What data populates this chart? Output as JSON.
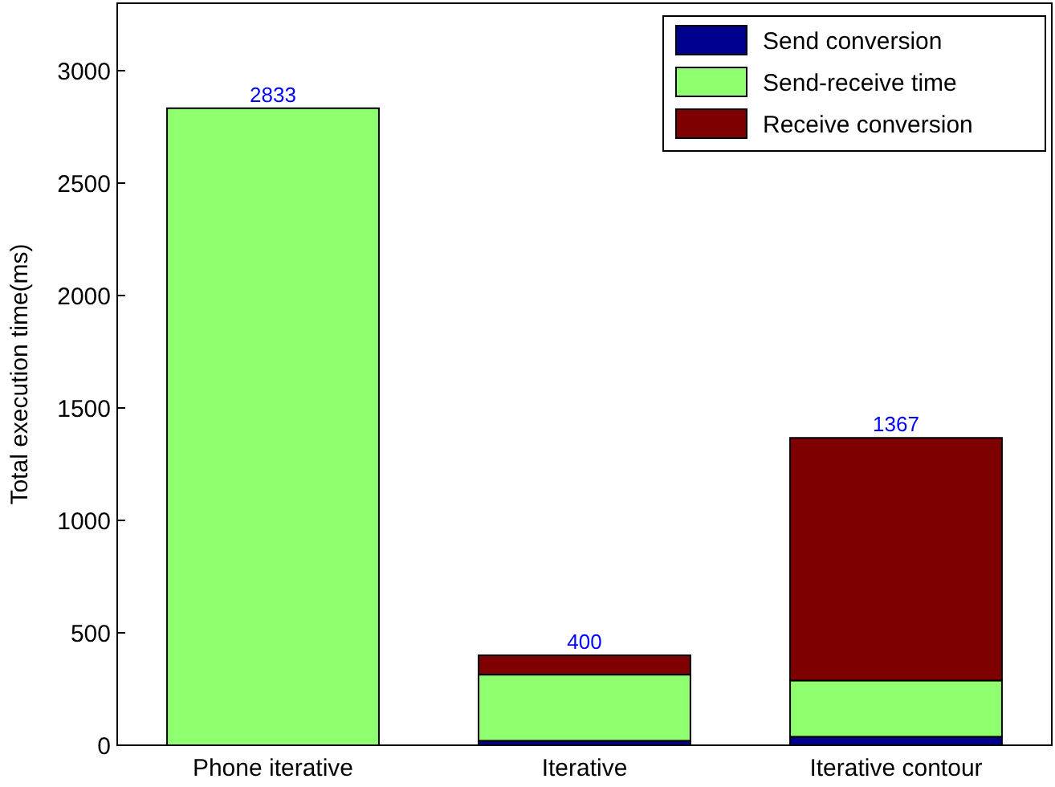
{
  "chart_data": {
    "type": "bar",
    "stacked": true,
    "ylabel": "Total execution time(ms)",
    "categories": [
      "Phone iterative",
      "Iterative",
      "Iterative contour"
    ],
    "series": [
      {
        "name": "Send conversion",
        "color": "#00008f",
        "values": [
          0,
          20,
          38
        ]
      },
      {
        "name": "Send-receive time",
        "color": "#8fff70",
        "values": [
          2833,
          294,
          250
        ]
      },
      {
        "name": "Receive conversion",
        "color": "#7f0000",
        "values": [
          0,
          86,
          1079
        ]
      }
    ],
    "totals": [
      "2833",
      "400",
      "1367"
    ],
    "ylim": [
      0,
      3300
    ],
    "yticks": [
      0,
      500,
      1000,
      1500,
      2000,
      2500,
      3000
    ],
    "legend": "top right"
  }
}
